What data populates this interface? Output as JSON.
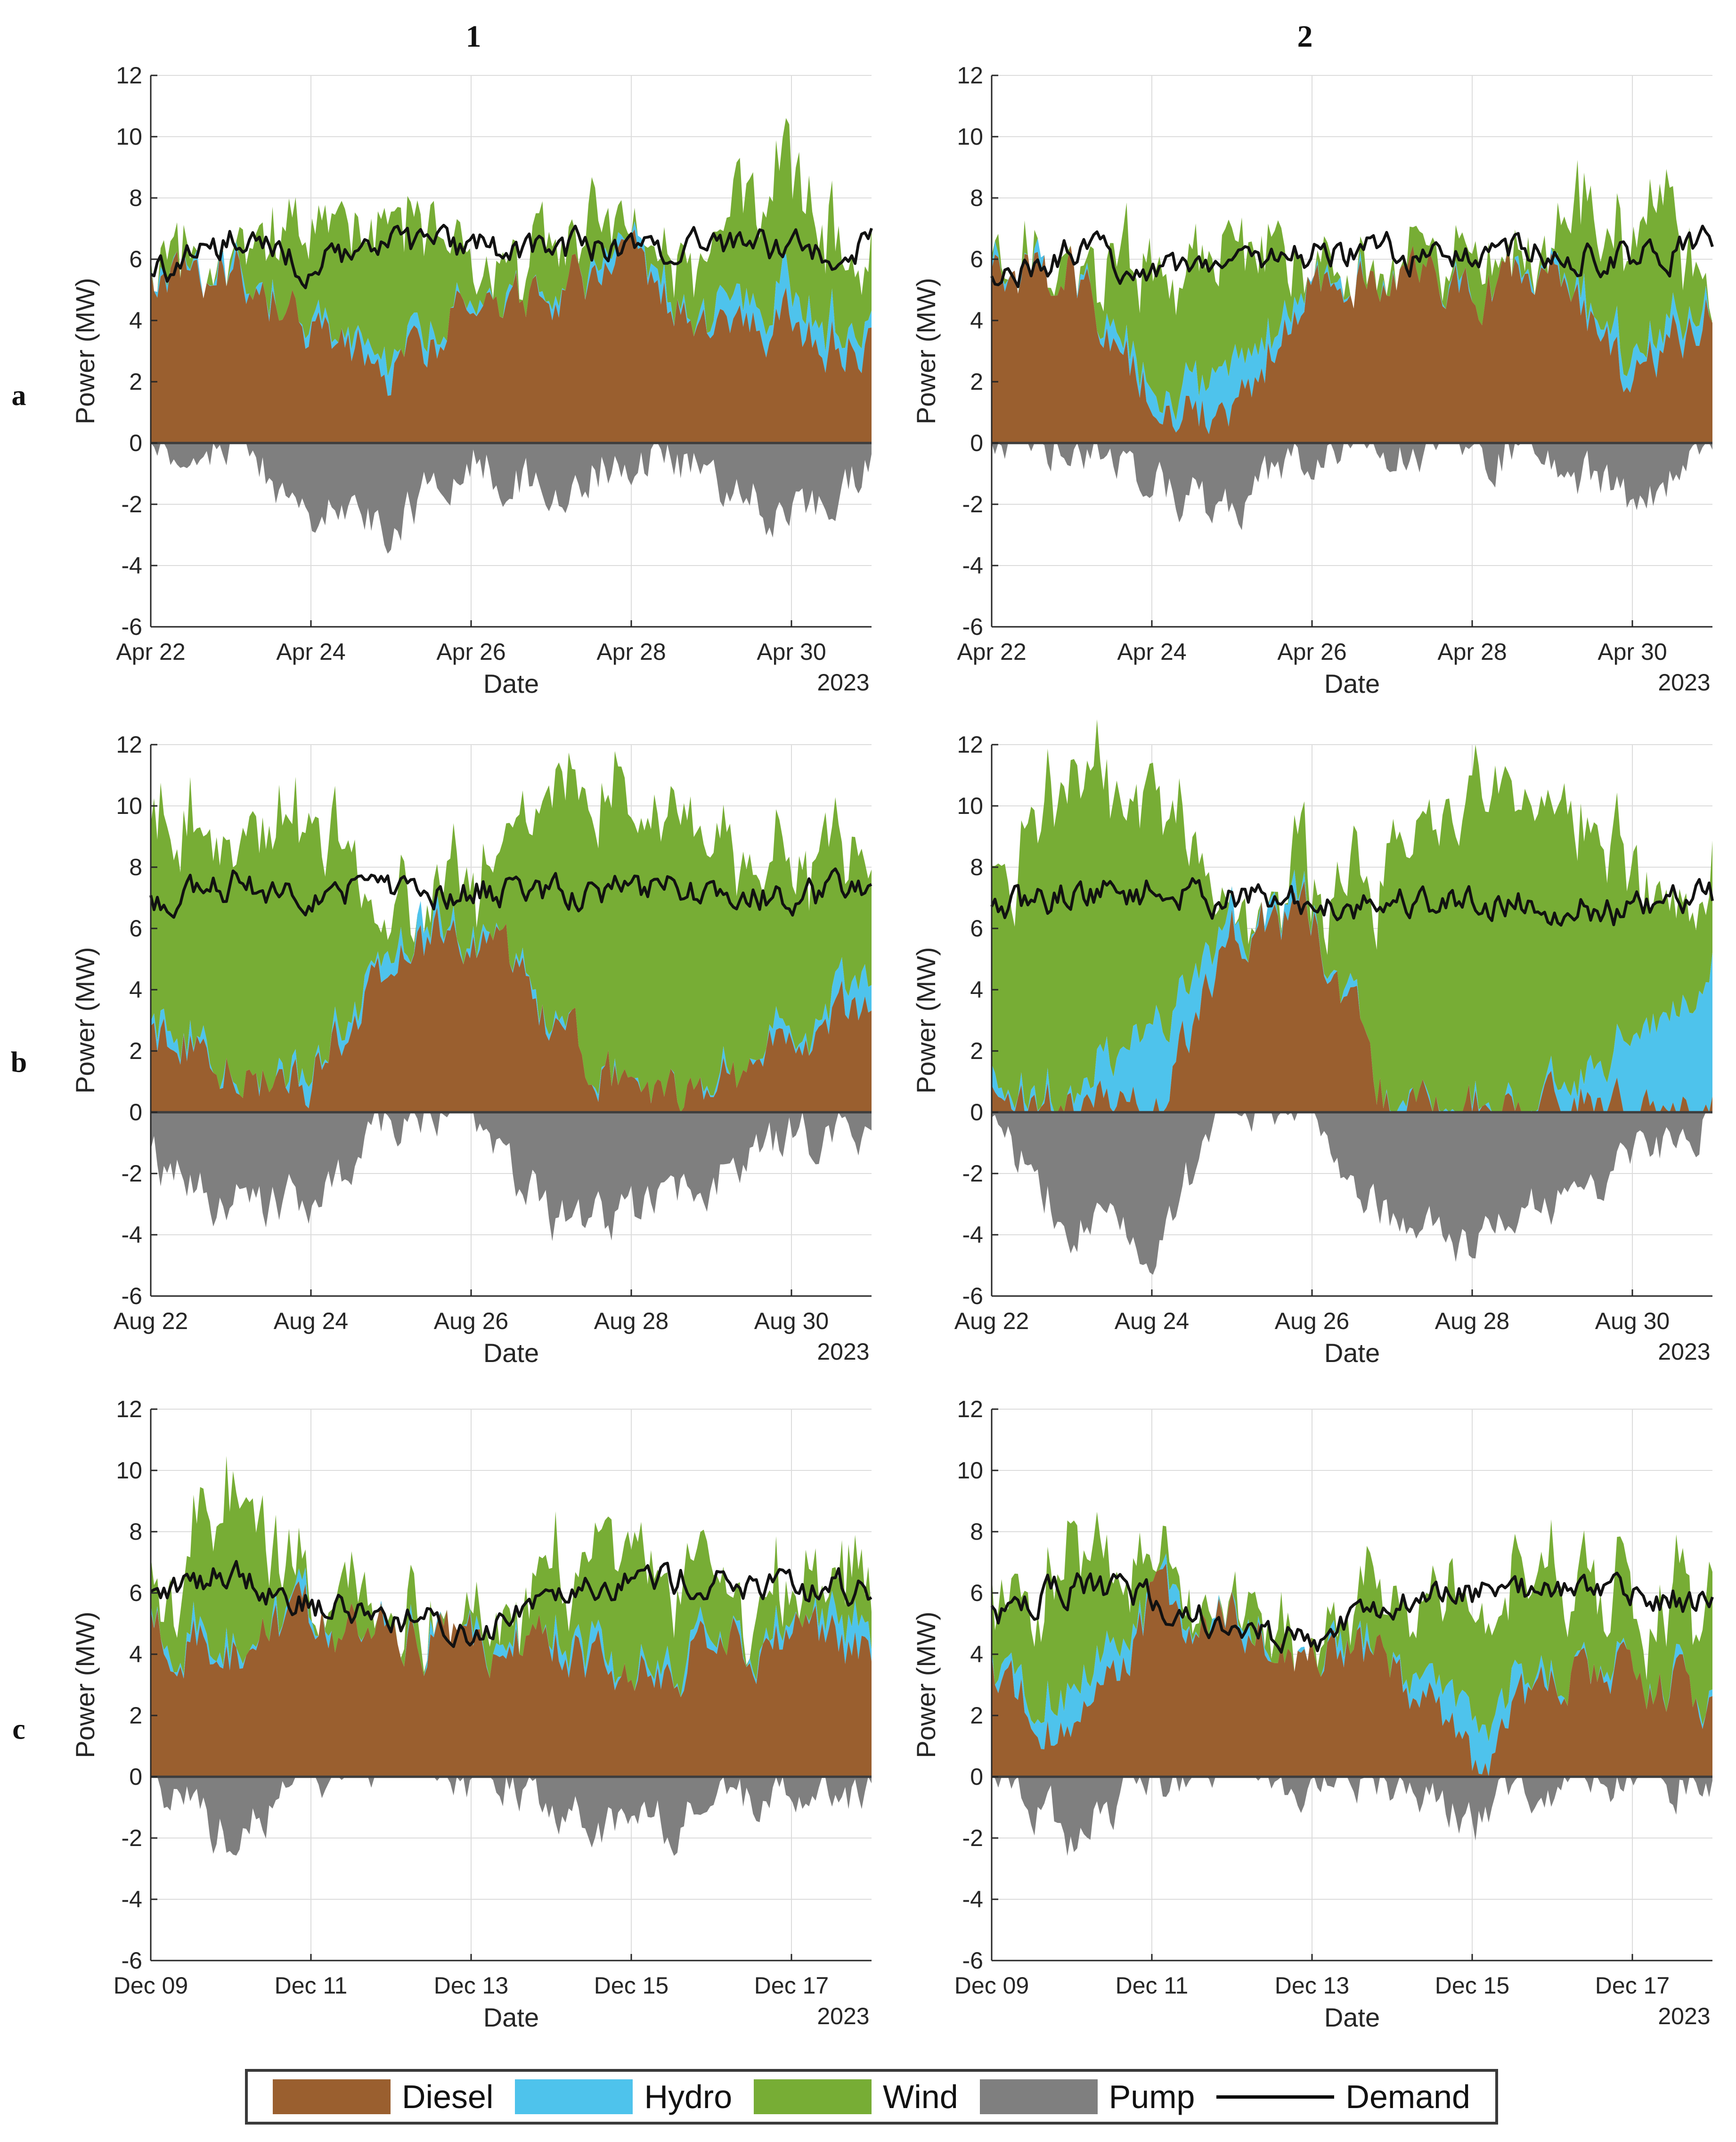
{
  "columns": [
    "1",
    "2"
  ],
  "rows": [
    "a",
    "b",
    "c"
  ],
  "colors": {
    "diesel": "#9a5f2f",
    "hydro": "#4ec3ec",
    "wind": "#77ad35",
    "pump": "#7f7f7f",
    "demand": "#111111"
  },
  "legend": [
    {
      "label": "Diesel",
      "color": "#9a5f2f",
      "kind": "area"
    },
    {
      "label": "Hydro",
      "color": "#4ec3ec",
      "kind": "area"
    },
    {
      "label": "Wind",
      "color": "#77ad35",
      "kind": "area"
    },
    {
      "label": "Pump",
      "color": "#7f7f7f",
      "kind": "area"
    },
    {
      "label": "Demand",
      "color": "#111111",
      "kind": "line"
    }
  ],
  "chart_data": [
    {
      "id": "a1",
      "type": "area",
      "row": "a",
      "column": "1",
      "xlabel": "Date",
      "ylabel": "Power (MW)",
      "year_label": "2023",
      "xlim": [
        "Apr 22",
        "May 1"
      ],
      "ylim": [
        -6,
        12
      ],
      "yticks": [
        -6,
        -4,
        -2,
        0,
        2,
        4,
        6,
        8,
        10,
        12
      ],
      "xticks": [
        "Apr 22",
        "Apr 24",
        "Apr 26",
        "Apr 28",
        "Apr 30"
      ],
      "grid": true,
      "x": [
        "Apr 22",
        "Apr 23",
        "Apr 24",
        "Apr 25",
        "Apr 26",
        "Apr 27",
        "Apr 28",
        "Apr 29",
        "Apr 30",
        "May 1"
      ],
      "series": [
        {
          "name": "Diesel",
          "values": [
            5.5,
            6.0,
            3.5,
            2.5,
            4.5,
            5.0,
            5.5,
            3.5,
            4.0,
            3.0
          ]
        },
        {
          "name": "Hydro",
          "values": [
            0,
            0,
            0,
            0.5,
            0.2,
            0,
            0,
            0.5,
            1.0,
            0.5
          ]
        },
        {
          "name": "Wind",
          "values": [
            0,
            0.3,
            3.5,
            4.5,
            1.5,
            1.0,
            0.5,
            2.5,
            3.5,
            3.0
          ]
        },
        {
          "name": "Pump",
          "values": [
            0,
            -0.3,
            -2.0,
            -2.5,
            -0.5,
            -1.5,
            -0.3,
            -1.0,
            -2.5,
            -0.8
          ]
        },
        {
          "name": "Demand",
          "values": [
            5.4,
            6.5,
            5.8,
            6.4,
            6.3,
            6.4,
            6.3,
            6.6,
            6.2,
            6.6
          ]
        }
      ]
    },
    {
      "id": "a2",
      "type": "area",
      "row": "a",
      "column": "2",
      "xlabel": "Date",
      "ylabel": "Power (MW)",
      "year_label": "2023",
      "xlim": [
        "Apr 22",
        "May 1"
      ],
      "ylim": [
        -6,
        12
      ],
      "yticks": [
        -6,
        -4,
        -2,
        0,
        2,
        4,
        6,
        8,
        10,
        12
      ],
      "xticks": [
        "Apr 22",
        "Apr 24",
        "Apr 26",
        "Apr 28",
        "Apr 30"
      ],
      "grid": true,
      "x": [
        "Apr 22",
        "Apr 23",
        "Apr 24",
        "Apr 25",
        "Apr 26",
        "Apr 27",
        "Apr 28",
        "Apr 29",
        "Apr 30",
        "May 1"
      ],
      "series": [
        {
          "name": "Diesel",
          "values": [
            5.4,
            5.5,
            1.5,
            1.0,
            5.5,
            5.5,
            5.0,
            5.5,
            1.5,
            5.0
          ]
        },
        {
          "name": "Hydro",
          "values": [
            0,
            0,
            0.5,
            1.5,
            0,
            0,
            0,
            0,
            0.8,
            0
          ]
        },
        {
          "name": "Wind",
          "values": [
            0,
            0.8,
            4.0,
            4.5,
            0.5,
            0.5,
            0.8,
            0.8,
            4.0,
            1.0
          ]
        },
        {
          "name": "Pump",
          "values": [
            0,
            0,
            -1.0,
            -2.5,
            0,
            0,
            0,
            -0.5,
            -2.0,
            0
          ]
        },
        {
          "name": "Demand",
          "values": [
            5.3,
            6.2,
            5.8,
            6.0,
            6.1,
            6.2,
            6.1,
            6.3,
            6.1,
            6.4
          ]
        }
      ]
    },
    {
      "id": "b1",
      "type": "area",
      "row": "b",
      "column": "1",
      "xlabel": "Date",
      "ylabel": "Power (MW)",
      "year_label": "2023",
      "xlim": [
        "Aug 22",
        "Aug 31"
      ],
      "ylim": [
        -6,
        12
      ],
      "yticks": [
        -6,
        -4,
        -2,
        0,
        2,
        4,
        6,
        8,
        10,
        12
      ],
      "xticks": [
        "Aug 22",
        "Aug 24",
        "Aug 26",
        "Aug 28",
        "Aug 30"
      ],
      "grid": true,
      "x": [
        "Aug 22",
        "Aug 23",
        "Aug 24",
        "Aug 25",
        "Aug 26",
        "Aug 27",
        "Aug 28",
        "Aug 29",
        "Aug 30",
        "Aug 31"
      ],
      "series": [
        {
          "name": "Diesel",
          "values": [
            2.5,
            1.5,
            1.0,
            5.0,
            6.0,
            3.0,
            0.5,
            0.5,
            2.0,
            3.5
          ]
        },
        {
          "name": "Hydro",
          "values": [
            0,
            0,
            0.5,
            0.5,
            0.2,
            0,
            0,
            0,
            0.3,
            0.8
          ]
        },
        {
          "name": "Wind",
          "values": [
            6.0,
            8.0,
            8.5,
            1.5,
            1.5,
            7.0,
            9.5,
            8.0,
            5.5,
            4.0
          ]
        },
        {
          "name": "Pump",
          "values": [
            -1.5,
            -3.0,
            -3.0,
            -0.2,
            0,
            -3.5,
            -3.5,
            -2.0,
            -0.8,
            -1.0
          ]
        },
        {
          "name": "Demand",
          "values": [
            6.9,
            7.5,
            7.3,
            7.4,
            7.3,
            7.3,
            7.2,
            7.2,
            7.0,
            7.2
          ]
        }
      ]
    },
    {
      "id": "b2",
      "type": "area",
      "row": "b",
      "column": "2",
      "xlabel": "Date",
      "ylabel": "Power (MW)",
      "year_label": "2023",
      "xlim": [
        "Aug 22",
        "Aug 31"
      ],
      "ylim": [
        -6,
        12
      ],
      "yticks": [
        -6,
        -4,
        -2,
        0,
        2,
        4,
        6,
        8,
        10,
        12
      ],
      "xticks": [
        "Aug 22",
        "Aug 24",
        "Aug 26",
        "Aug 28",
        "Aug 30"
      ],
      "grid": true,
      "x": [
        "Aug 22",
        "Aug 23",
        "Aug 24",
        "Aug 25",
        "Aug 26",
        "Aug 27",
        "Aug 28",
        "Aug 29",
        "Aug 30",
        "Aug 31"
      ],
      "series": [
        {
          "name": "Diesel",
          "values": [
            0.5,
            0,
            0,
            6.0,
            6.5,
            0,
            0,
            0,
            0,
            0
          ]
        },
        {
          "name": "Hydro",
          "values": [
            0.5,
            0,
            3.0,
            0.5,
            0,
            0,
            0,
            0,
            2.0,
            4.5
          ]
        },
        {
          "name": "Wind",
          "values": [
            6.0,
            10.0,
            8.0,
            0.5,
            0.5,
            8.0,
            11.0,
            9.5,
            5.0,
            3.0
          ]
        },
        {
          "name": "Pump",
          "values": [
            -0.5,
            -3.5,
            -4.0,
            0,
            0,
            -3.5,
            -4.5,
            -3.0,
            -1.5,
            0
          ]
        },
        {
          "name": "Demand",
          "values": [
            6.5,
            7.2,
            7.2,
            7.0,
            6.8,
            6.9,
            6.9,
            6.8,
            6.5,
            7.1
          ]
        }
      ]
    },
    {
      "id": "c1",
      "type": "area",
      "row": "c",
      "column": "1",
      "xlabel": "Date",
      "ylabel": "Power (MW)",
      "year_label": "2023",
      "xlim": [
        "Dec 09",
        "Dec 18"
      ],
      "ylim": [
        -6,
        12
      ],
      "yticks": [
        -6,
        -4,
        -2,
        0,
        2,
        4,
        6,
        8,
        10,
        12
      ],
      "xticks": [
        "Dec 09",
        "Dec 11",
        "Dec 13",
        "Dec 15",
        "Dec 17"
      ],
      "grid": true,
      "x": [
        "Dec 09",
        "Dec 10",
        "Dec 11",
        "Dec 12",
        "Dec 13",
        "Dec 14",
        "Dec 15",
        "Dec 16",
        "Dec 17",
        "Dec 18"
      ],
      "series": [
        {
          "name": "Diesel",
          "values": [
            5.0,
            4.0,
            5.0,
            4.5,
            4.3,
            4.5,
            3.0,
            4.5,
            4.5,
            4.0
          ]
        },
        {
          "name": "Hydro",
          "values": [
            0,
            0.5,
            0,
            0,
            0,
            0,
            0.3,
            0.2,
            0.3,
            0.5
          ]
        },
        {
          "name": "Wind",
          "values": [
            1.0,
            4.5,
            0.5,
            0.5,
            0.3,
            1.5,
            5.0,
            2.0,
            1.5,
            1.5
          ]
        },
        {
          "name": "Pump",
          "values": [
            -0.2,
            -2.0,
            0,
            0,
            0,
            -0.5,
            -2.0,
            -1.0,
            -0.8,
            -0.3
          ]
        },
        {
          "name": "Demand",
          "values": [
            5.8,
            6.8,
            5.6,
            5.3,
            4.6,
            6.3,
            6.5,
            6.4,
            6.0,
            6.2
          ]
        }
      ]
    },
    {
      "id": "c2",
      "type": "area",
      "row": "c",
      "column": "2",
      "xlabel": "Date",
      "ylabel": "Power (MW)",
      "year_label": "2023",
      "xlim": [
        "Dec 09",
        "Dec 18"
      ],
      "ylim": [
        -6,
        12
      ],
      "yticks": [
        -6,
        -4,
        -2,
        0,
        2,
        4,
        6,
        8,
        10,
        12
      ],
      "xticks": [
        "Dec 09",
        "Dec 11",
        "Dec 13",
        "Dec 15",
        "Dec 17"
      ],
      "grid": true,
      "x": [
        "Dec 09",
        "Dec 10",
        "Dec 11",
        "Dec 12",
        "Dec 13",
        "Dec 14",
        "Dec 15",
        "Dec 16",
        "Dec 17",
        "Dec 18"
      ],
      "series": [
        {
          "name": "Diesel",
          "values": [
            3.5,
            1.0,
            5.5,
            5.0,
            4.3,
            3.5,
            0.5,
            3.0,
            3.5,
            2.5
          ]
        },
        {
          "name": "Hydro",
          "values": [
            0,
            1.5,
            0,
            0,
            0,
            0,
            1.5,
            0,
            0,
            0
          ]
        },
        {
          "name": "Wind",
          "values": [
            1.8,
            4.5,
            0.3,
            0.3,
            0.3,
            2.0,
            4.0,
            3.0,
            2.5,
            2.5
          ]
        },
        {
          "name": "Pump",
          "values": [
            0,
            -2.0,
            0,
            0,
            0,
            0,
            -1.5,
            -0.3,
            0,
            0
          ]
        },
        {
          "name": "Demand",
          "values": [
            5.3,
            6.2,
            5.8,
            5.0,
            4.4,
            5.6,
            6.0,
            6.2,
            5.9,
            5.8
          ]
        }
      ]
    }
  ]
}
